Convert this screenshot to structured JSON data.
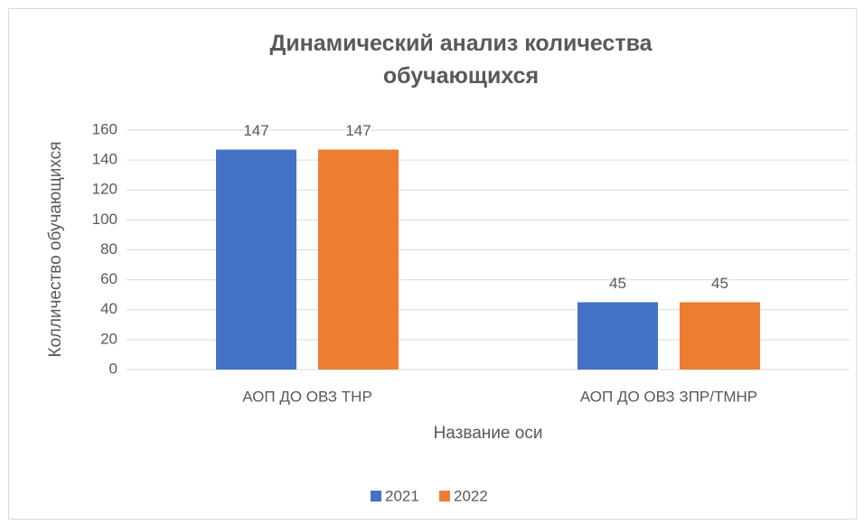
{
  "chart_data": {
    "type": "bar",
    "title": "Динамический анализ количества обучающихся",
    "x_label": "Название оси",
    "y_label": "Колличество обучающихся",
    "categories": [
      "АОП ДО ОВЗ ТНР",
      "АОП ДО ОВЗ ЗПР/ТМНР"
    ],
    "series": [
      {
        "name": "2021",
        "color": "#4472c4",
        "values": [
          147,
          45
        ]
      },
      {
        "name": "2022",
        "color": "#ed7d31",
        "values": [
          147,
          45
        ]
      }
    ],
    "ylim": [
      0,
      160
    ],
    "yticks": [
      0,
      20,
      40,
      60,
      80,
      100,
      120,
      140,
      160
    ],
    "grid": true,
    "legend": "bottom",
    "data_labels": true
  }
}
